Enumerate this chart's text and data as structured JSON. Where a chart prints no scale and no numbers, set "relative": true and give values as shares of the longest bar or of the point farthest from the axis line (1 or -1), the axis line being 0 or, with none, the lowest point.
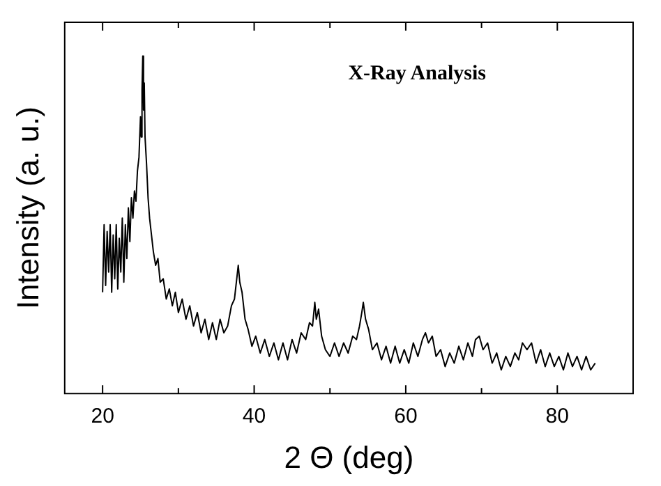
{
  "chart_data": {
    "type": "line",
    "relative": true,
    "title": "X-Ray Analysis",
    "xlabel": "2 Θ (deg)",
    "ylabel": "Intensity (a. u.)",
    "xlim": [
      15,
      90
    ],
    "xticks": [
      20,
      {
        "value": 30,
        "label": null
      },
      40,
      {
        "value": 50,
        "label": null
      },
      60,
      {
        "value": 70,
        "label": null
      },
      80
    ],
    "grid": false,
    "legend": false,
    "marker": "none",
    "line_style": "solid",
    "series": [
      {
        "color": "#000000",
        "x": [
          20,
          20.2,
          20.4,
          20.6,
          20.8,
          21,
          21.2,
          21.4,
          21.6,
          21.8,
          22,
          22.2,
          22.4,
          22.6,
          22.8,
          23,
          23.2,
          23.4,
          23.6,
          23.8,
          24,
          24.2,
          24.4,
          24.6,
          24.8,
          25,
          25.1,
          25.2,
          25.3,
          25.4,
          25.5,
          25.6,
          25.8,
          26,
          26.2,
          26.4,
          26.7,
          27,
          27.3,
          27.6,
          28,
          28.4,
          28.8,
          29.2,
          29.6,
          30,
          30.5,
          31,
          31.5,
          32,
          32.5,
          33,
          33.5,
          34,
          34.5,
          35,
          35.5,
          36,
          36.5,
          37,
          37.4,
          37.7,
          37.9,
          38.1,
          38.4,
          38.8,
          39.2,
          39.7,
          40.2,
          40.8,
          41.4,
          42,
          42.6,
          43.2,
          43.8,
          44.4,
          45,
          45.6,
          46.2,
          46.8,
          47.3,
          47.7,
          48,
          48.2,
          48.5,
          48.9,
          49.4,
          50,
          50.6,
          51.2,
          51.8,
          52.4,
          53,
          53.5,
          53.9,
          54.2,
          54.4,
          54.7,
          55.1,
          55.6,
          56.2,
          56.8,
          57.4,
          58,
          58.6,
          59.2,
          59.8,
          60.4,
          61,
          61.6,
          62.2,
          62.6,
          63,
          63.5,
          64,
          64.6,
          65.2,
          65.8,
          66.4,
          67,
          67.6,
          68.2,
          68.8,
          69.2,
          69.7,
          70.2,
          70.8,
          71.4,
          72,
          72.6,
          73.2,
          73.8,
          74.4,
          74.9,
          75.4,
          76,
          76.6,
          77.2,
          77.8,
          78.4,
          79,
          79.6,
          80.2,
          80.8,
          81.4,
          82,
          82.6,
          83.2,
          83.8,
          84.4,
          85
        ],
        "values": [
          0.3,
          0.5,
          0.32,
          0.48,
          0.36,
          0.5,
          0.3,
          0.47,
          0.34,
          0.5,
          0.31,
          0.46,
          0.36,
          0.52,
          0.33,
          0.5,
          0.4,
          0.55,
          0.45,
          0.58,
          0.52,
          0.6,
          0.57,
          0.66,
          0.7,
          0.82,
          0.76,
          0.9,
          1.0,
          0.84,
          0.92,
          0.76,
          0.68,
          0.58,
          0.52,
          0.48,
          0.42,
          0.38,
          0.4,
          0.33,
          0.34,
          0.28,
          0.31,
          0.26,
          0.3,
          0.24,
          0.28,
          0.22,
          0.26,
          0.2,
          0.24,
          0.18,
          0.22,
          0.16,
          0.21,
          0.16,
          0.22,
          0.18,
          0.2,
          0.26,
          0.28,
          0.34,
          0.38,
          0.33,
          0.3,
          0.22,
          0.19,
          0.14,
          0.17,
          0.12,
          0.16,
          0.11,
          0.15,
          0.1,
          0.15,
          0.1,
          0.16,
          0.12,
          0.18,
          0.16,
          0.21,
          0.2,
          0.27,
          0.22,
          0.25,
          0.17,
          0.13,
          0.11,
          0.15,
          0.11,
          0.15,
          0.12,
          0.17,
          0.16,
          0.2,
          0.24,
          0.27,
          0.22,
          0.19,
          0.13,
          0.15,
          0.1,
          0.14,
          0.09,
          0.14,
          0.09,
          0.13,
          0.09,
          0.15,
          0.11,
          0.16,
          0.18,
          0.15,
          0.17,
          0.11,
          0.13,
          0.08,
          0.12,
          0.09,
          0.14,
          0.1,
          0.15,
          0.11,
          0.16,
          0.17,
          0.13,
          0.15,
          0.09,
          0.12,
          0.07,
          0.11,
          0.08,
          0.12,
          0.1,
          0.15,
          0.13,
          0.15,
          0.09,
          0.13,
          0.08,
          0.12,
          0.08,
          0.11,
          0.07,
          0.12,
          0.08,
          0.11,
          0.07,
          0.11,
          0.07,
          0.09
        ]
      }
    ]
  }
}
